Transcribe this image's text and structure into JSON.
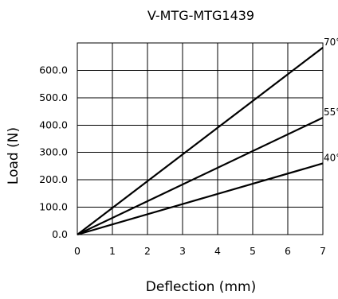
{
  "chart_data": {
    "type": "line",
    "title": "V-MTG-MTG1439",
    "xlabel": "Deflection (mm)",
    "ylabel": "Load (N)",
    "xlim": [
      0,
      7
    ],
    "ylim": [
      0,
      700
    ],
    "xticks": [
      0,
      1,
      2,
      3,
      4,
      5,
      6,
      7
    ],
    "yticks": [
      0,
      100,
      200,
      300,
      400,
      500,
      600
    ],
    "ytick_labels": [
      "0.0",
      "100.0",
      "200.0",
      "300.0",
      "400.0",
      "500.0",
      "600.0"
    ],
    "grid": true,
    "series": [
      {
        "name": "70°",
        "x": [
          0,
          7
        ],
        "y": [
          0,
          683
        ]
      },
      {
        "name": "55°",
        "x": [
          0,
          7
        ],
        "y": [
          0,
          427
        ]
      },
      {
        "name": "40°",
        "x": [
          0,
          7
        ],
        "y": [
          0,
          260
        ]
      }
    ],
    "colors": {
      "line": "#000000",
      "grid": "#000000",
      "background": "#ffffff"
    }
  }
}
